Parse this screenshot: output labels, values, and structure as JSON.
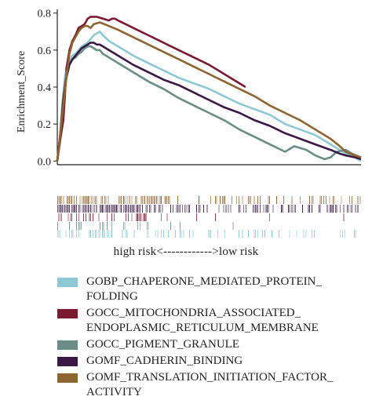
{
  "chart_data": {
    "type": "line",
    "ylabel": "Enrichment_Score",
    "xlabel": "",
    "ylim": [
      -0.02,
      0.82
    ],
    "xlim": [
      0,
      100
    ],
    "yticks": [
      "0.0",
      "0.2",
      "0.4",
      "0.6",
      "0.8"
    ],
    "ytick_values": [
      0.0,
      0.2,
      0.4,
      0.6,
      0.8
    ],
    "rank_label": "high risk<------------>low risk",
    "series": [
      {
        "name": "GOBP_CHAPERONE_MEDIATED_PROTEIN_\nFOLDING",
        "color": "#8ec8d4",
        "x": [
          0,
          0.8,
          1.6,
          2.5,
          3.3,
          4.2,
          5.0,
          6.0,
          7.0,
          8.0,
          9.0,
          10.0,
          11.0,
          12.0,
          13.0,
          14.0,
          15.0,
          17.0,
          20.0,
          25.0,
          30.0,
          35.0,
          40.0,
          45.0,
          50.0,
          55.0,
          60.0,
          65.0,
          70.0,
          75.0,
          80.0,
          85.0,
          88.0,
          90.0,
          92.0,
          95.0,
          98.0,
          100.0
        ],
        "y": [
          0.0,
          0.1,
          0.3,
          0.45,
          0.52,
          0.55,
          0.57,
          0.58,
          0.6,
          0.62,
          0.63,
          0.64,
          0.66,
          0.68,
          0.69,
          0.7,
          0.68,
          0.65,
          0.62,
          0.57,
          0.53,
          0.49,
          0.45,
          0.42,
          0.39,
          0.35,
          0.31,
          0.28,
          0.25,
          0.2,
          0.17,
          0.14,
          0.11,
          0.09,
          0.07,
          0.04,
          0.02,
          0.0
        ]
      },
      {
        "name": "GOCC_MITOCHONDRIA_ASSOCIATED_\nENDOPLASMIC_RETICULUM_MEMBRANE",
        "color": "#7a1a30",
        "x": [
          0,
          1.0,
          2.0,
          2.5,
          3.0,
          4.0,
          5.0,
          6.0,
          7.0,
          8.0,
          9.0,
          10.0,
          11.0,
          12.0,
          13.0,
          15.0,
          17.0,
          18.0,
          19.0,
          20.0,
          25.0,
          30.0,
          35.0,
          40.0,
          45.0,
          50.0,
          55.0,
          62.0
        ],
        "y": [
          0.0,
          0.12,
          0.22,
          0.35,
          0.5,
          0.6,
          0.65,
          0.68,
          0.72,
          0.73,
          0.74,
          0.77,
          0.78,
          0.78,
          0.78,
          0.77,
          0.76,
          0.77,
          0.77,
          0.76,
          0.72,
          0.68,
          0.64,
          0.6,
          0.56,
          0.52,
          0.47,
          0.4
        ]
      },
      {
        "name": "GOCC_PIGMENT_GRANULE",
        "color": "#6a8e86",
        "x": [
          0,
          1.0,
          2.0,
          3.0,
          4.0,
          5.0,
          6.0,
          7.0,
          8.0,
          9.0,
          10.0,
          11.0,
          12.0,
          13.0,
          14.0,
          15.0,
          17.0,
          20.0,
          25.0,
          30.0,
          35.0,
          40.0,
          45.0,
          50.0,
          55.0,
          60.0,
          65.0,
          70.0,
          75.0,
          78.0,
          80.0,
          82.0,
          85.0,
          88.0,
          90.0,
          92.0,
          95.0,
          97.0,
          100.0
        ],
        "y": [
          0.0,
          0.15,
          0.35,
          0.48,
          0.53,
          0.55,
          0.56,
          0.58,
          0.59,
          0.61,
          0.62,
          0.62,
          0.61,
          0.6,
          0.6,
          0.58,
          0.56,
          0.53,
          0.48,
          0.43,
          0.39,
          0.34,
          0.3,
          0.26,
          0.22,
          0.17,
          0.13,
          0.09,
          0.05,
          0.08,
          0.07,
          0.06,
          0.03,
          0.01,
          0.02,
          0.05,
          0.06,
          0.04,
          0.02
        ]
      },
      {
        "name": "GOMF_CADHERIN_BINDING",
        "color": "#3a1a44",
        "x": [
          0,
          1.0,
          2.0,
          3.0,
          4.0,
          5.0,
          6.0,
          7.0,
          8.0,
          9.0,
          10.0,
          11.0,
          12.0,
          13.0,
          14.0,
          15.0,
          17.0,
          20.0,
          25.0,
          30.0,
          35.0,
          40.0,
          45.0,
          50.0,
          55.0,
          60.0,
          65.0,
          70.0,
          75.0,
          80.0,
          85.0,
          90.0,
          93.0,
          95.0,
          98.0,
          100.0
        ],
        "y": [
          0.0,
          0.15,
          0.33,
          0.45,
          0.52,
          0.55,
          0.57,
          0.59,
          0.61,
          0.62,
          0.63,
          0.64,
          0.64,
          0.63,
          0.63,
          0.62,
          0.6,
          0.57,
          0.52,
          0.48,
          0.44,
          0.41,
          0.37,
          0.33,
          0.29,
          0.26,
          0.22,
          0.19,
          0.15,
          0.12,
          0.09,
          0.06,
          0.04,
          0.03,
          0.02,
          0.01
        ]
      },
      {
        "name": "GOMF_TRANSLATION_INITIATION_FACTOR_\nACTIVITY",
        "color": "#8e6430",
        "x": [
          0,
          1.0,
          2.0,
          3.0,
          4.0,
          5.0,
          6.0,
          7.0,
          8.0,
          9.0,
          10.0,
          11.0,
          12.0,
          14.0,
          17.0,
          20.0,
          25.0,
          30.0,
          35.0,
          40.0,
          45.0,
          50.0,
          55.0,
          60.0,
          65.0,
          70.0,
          75.0,
          80.0,
          85.0,
          90.0,
          93.0,
          95.0,
          98.0,
          100.0
        ],
        "y": [
          0.0,
          0.15,
          0.3,
          0.45,
          0.58,
          0.64,
          0.67,
          0.7,
          0.72,
          0.73,
          0.73,
          0.72,
          0.74,
          0.75,
          0.73,
          0.71,
          0.67,
          0.63,
          0.59,
          0.55,
          0.51,
          0.47,
          0.43,
          0.39,
          0.35,
          0.3,
          0.26,
          0.22,
          0.17,
          0.12,
          0.08,
          0.05,
          0.03,
          0.02
        ]
      }
    ]
  }
}
